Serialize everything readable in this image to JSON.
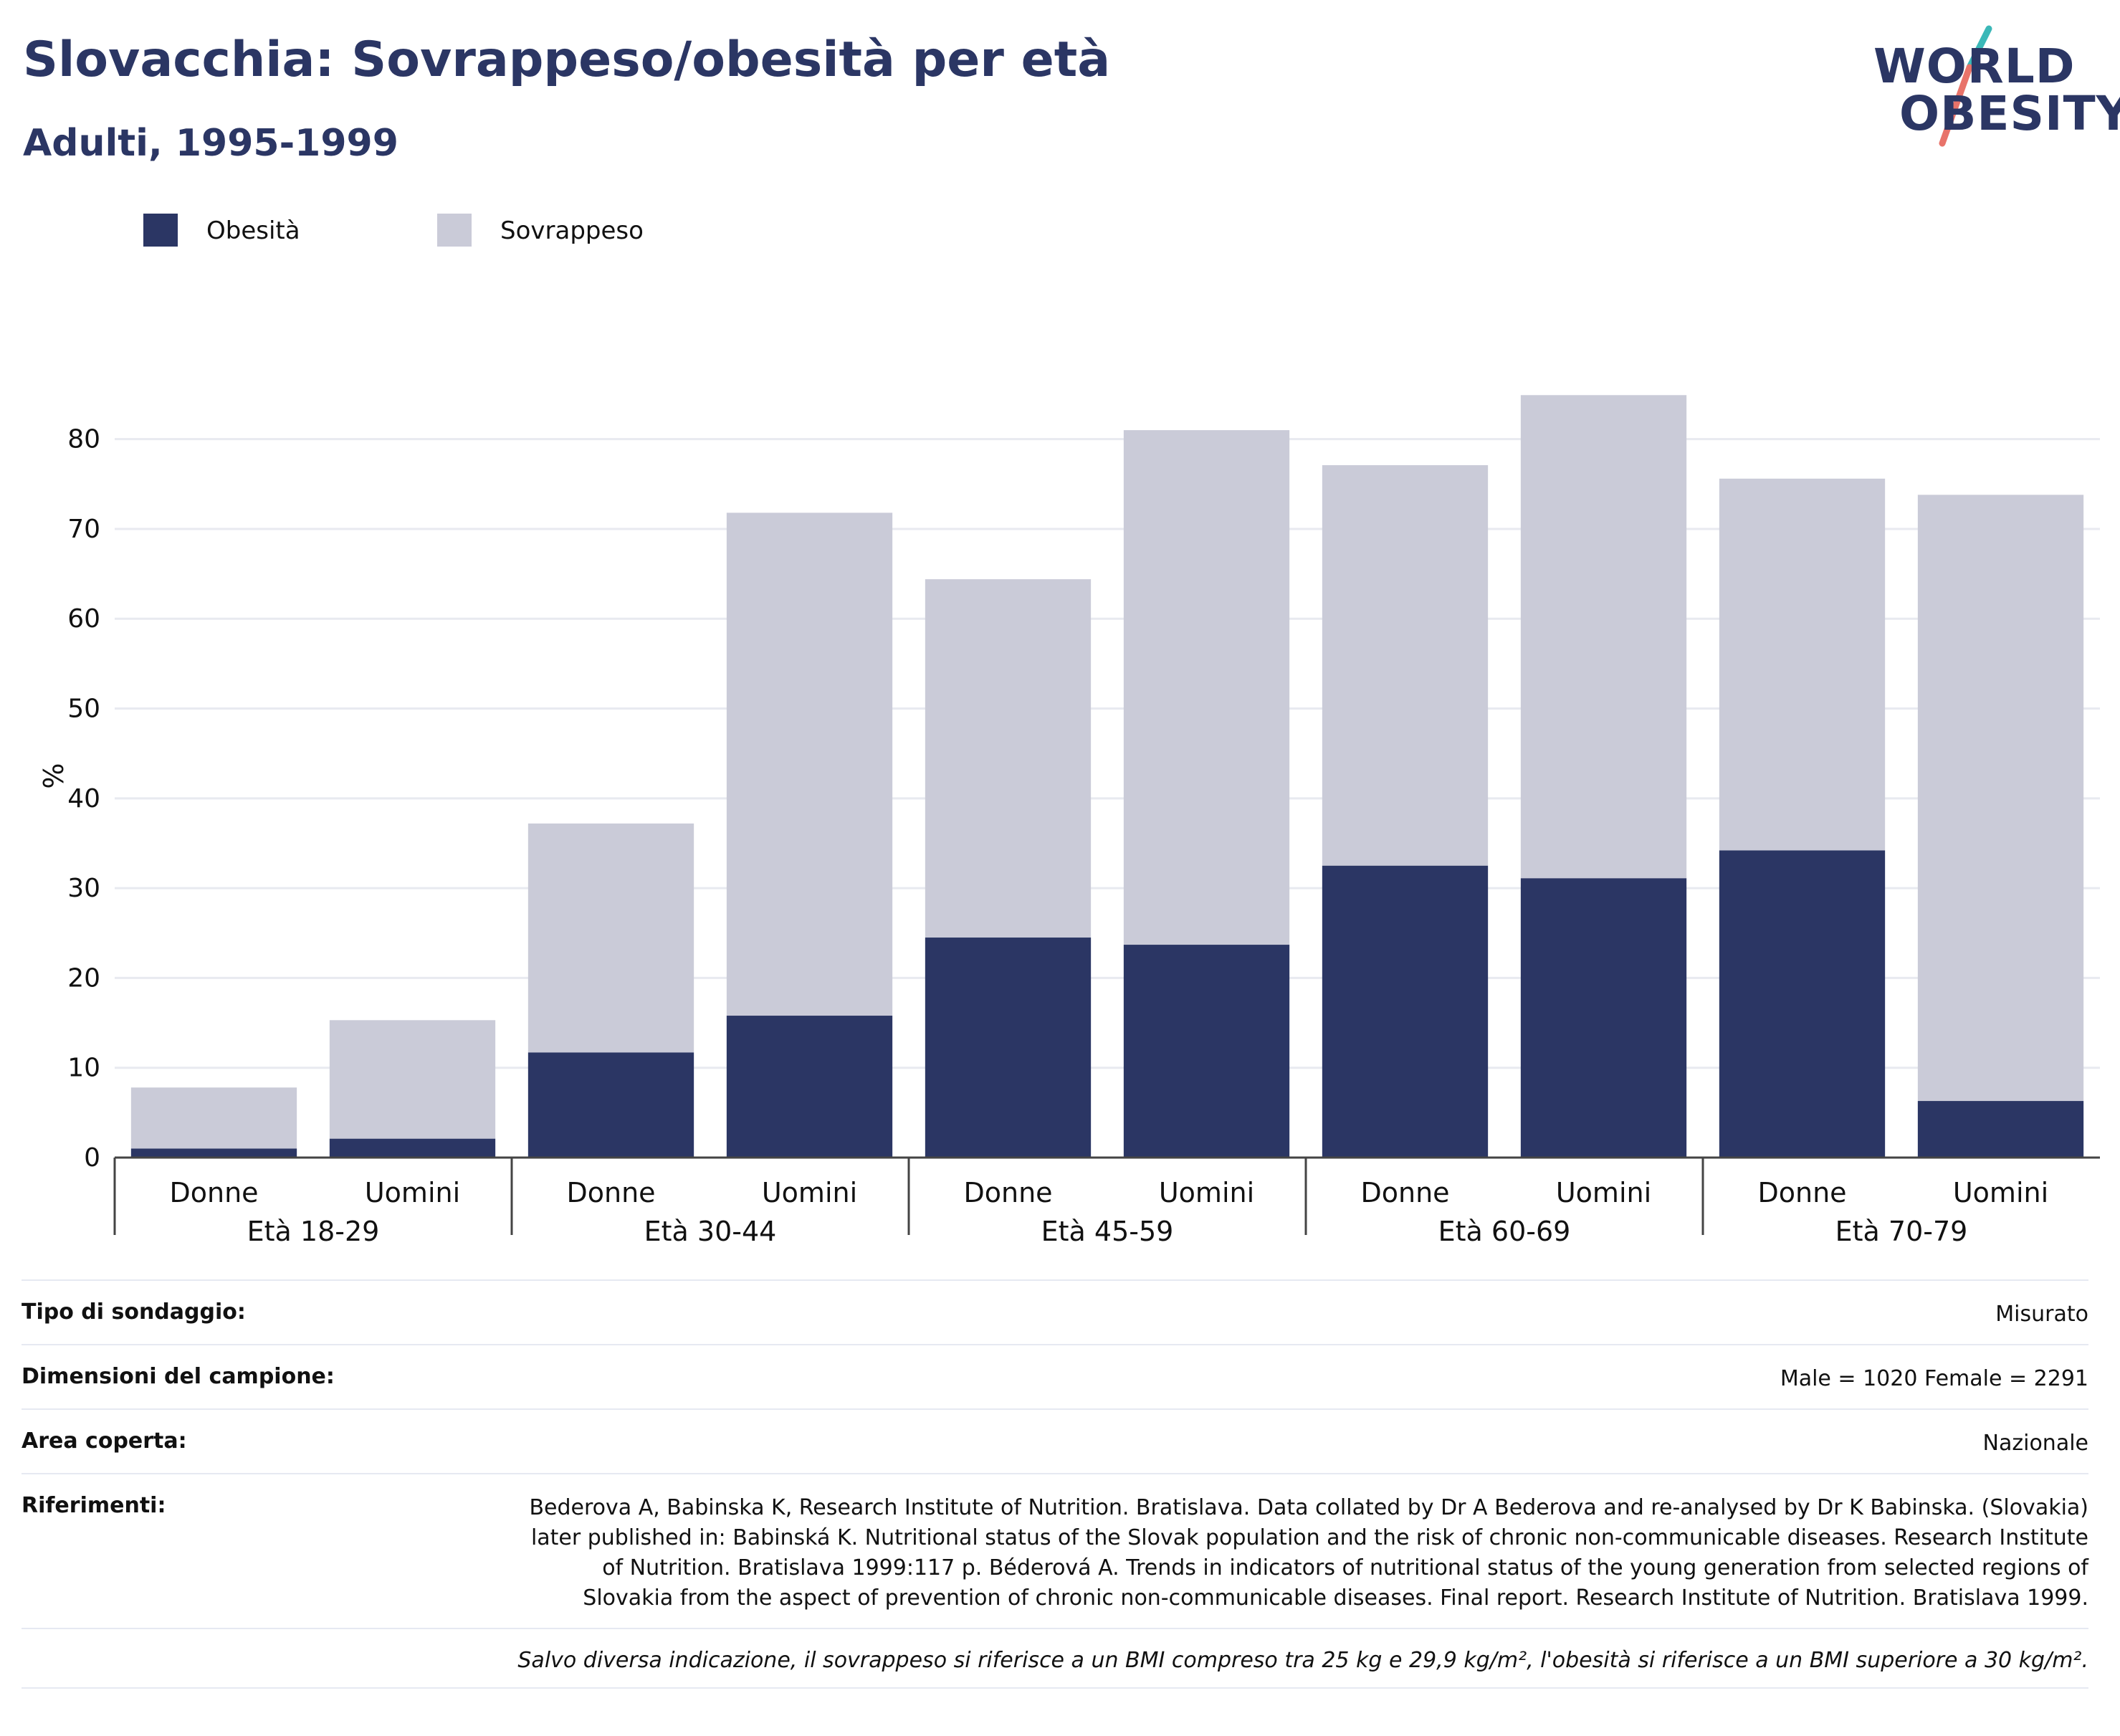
{
  "title": "Slovacchia: Sovrappeso/obesità per età",
  "subtitle": "Adulti, 1995-1999",
  "logo": {
    "line1": "WORLD",
    "line2": "OBESITY"
  },
  "colors": {
    "obesity": "#2b3664",
    "overweight": "#cacbd8",
    "title": "#2b3664",
    "grid": "#e8eaf0"
  },
  "chart_data": {
    "type": "bar",
    "stacked": true,
    "ylabel": "%",
    "ylim": [
      0,
      85
    ],
    "yticks": [
      0,
      10,
      20,
      30,
      40,
      50,
      60,
      70,
      80
    ],
    "grid": true,
    "legend_position": "top-left",
    "groups": [
      "Età 18-29",
      "Età 30-44",
      "Età 45-59",
      "Età 60-69",
      "Età 70-79"
    ],
    "sub_categories": [
      "Donne",
      "Uomini"
    ],
    "series": [
      {
        "name": "Obesità",
        "values": [
          1.0,
          2.1,
          11.7,
          15.8,
          24.5,
          23.7,
          32.5,
          31.1,
          34.2,
          6.3
        ]
      },
      {
        "name": "Sovrappeso",
        "values": [
          6.8,
          13.2,
          25.5,
          56.0,
          39.9,
          57.3,
          44.6,
          53.8,
          41.4,
          67.5
        ]
      }
    ]
  },
  "meta": {
    "rows": [
      {
        "key": "Tipo di sondaggio:",
        "value": "Misurato"
      },
      {
        "key": "Dimensioni del campione:",
        "value": "Male = 1020 Female = 2291"
      },
      {
        "key": "Area coperta:",
        "value": "Nazionale"
      },
      {
        "key": "Riferimenti:",
        "value": "Bederova A, Babinska K, Research Institute of Nutrition. Bratislava. Data collated by Dr A Bederova and re-analysed by Dr K Babinska. (Slovakia) later published in: Babinská K. Nutritional status of the Slovak population and the risk of chronic non-communicable diseases. Research Institute of Nutrition. Bratislava 1999:117 p. Béderová A. Trends in indicators of nutritional status of the young generation from selected regions of Slovakia from the aspect of prevention of chronic non-communicable diseases. Final report. Research Institute of Nutrition. Bratislava 1999."
      }
    ],
    "note": "Salvo diversa indicazione, il sovrappeso si riferisce a un BMI compreso tra 25 kg e 29,9 kg/m², l'obesità si riferisce a un BMI superiore a 30 kg/m²."
  }
}
